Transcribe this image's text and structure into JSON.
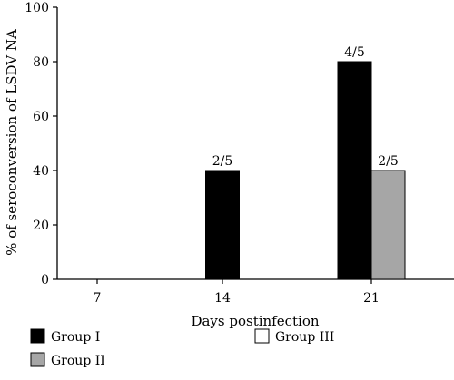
{
  "chart_data": {
    "type": "bar",
    "title": "",
    "xlabel": "Days postinfection",
    "ylabel": "% of seroconversion of  LSDV NA",
    "ylim": [
      0,
      100
    ],
    "yticks": [
      0,
      20,
      40,
      60,
      80,
      100
    ],
    "categories": [
      "7",
      "14",
      "21"
    ],
    "series": [
      {
        "name": "Group I",
        "values": [
          0,
          40,
          80
        ],
        "labels": [
          "",
          "2/5",
          "4/5"
        ],
        "color": "#000000"
      },
      {
        "name": "Group II",
        "values": [
          0,
          0,
          40
        ],
        "labels": [
          "",
          "",
          "2/5"
        ],
        "color": "#a6a6a6"
      },
      {
        "name": "Group III",
        "values": [
          0,
          0,
          0
        ],
        "labels": [
          "",
          "",
          ""
        ],
        "color": "#ffffff"
      }
    ],
    "legend": "bottom",
    "grid": false
  }
}
